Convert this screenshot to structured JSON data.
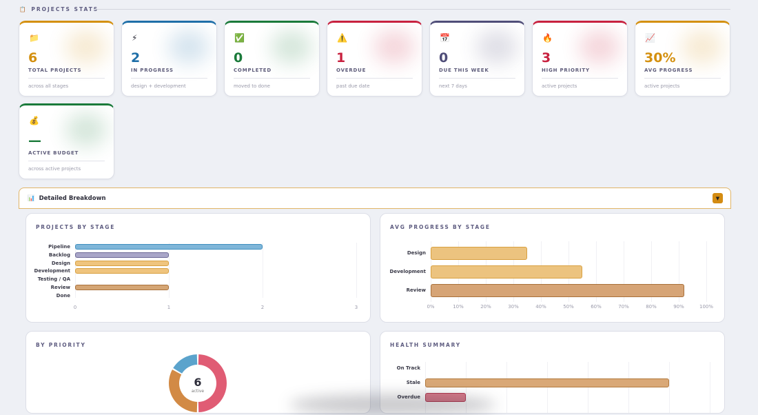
{
  "section": {
    "icon": "clipboard-icon",
    "title": "PROJECTS STATS"
  },
  "cards": [
    {
      "icon": "📁",
      "icon_name": "folder-icon",
      "value": "6",
      "label": "TOTAL PROJECTS",
      "sub": "across all stages",
      "color": "#d4900f"
    },
    {
      "icon": "⚡",
      "icon_name": "lightning-icon",
      "value": "2",
      "label": "IN PROGRESS",
      "sub": "design + development",
      "color": "#1f6fa8"
    },
    {
      "icon": "✅",
      "icon_name": "check-icon",
      "value": "0",
      "label": "COMPLETED",
      "sub": "moved to done",
      "color": "#1a7a3a"
    },
    {
      "icon": "⚠️",
      "icon_name": "warning-icon",
      "value": "1",
      "label": "OVERDUE",
      "sub": "past due date",
      "color": "#c8213f"
    },
    {
      "icon": "📅",
      "icon_name": "calendar-icon",
      "value": "0",
      "label": "DUE THIS WEEK",
      "sub": "next 7 days",
      "color": "#4f4d78"
    },
    {
      "icon": "🔥",
      "icon_name": "fire-icon",
      "value": "3",
      "label": "HIGH PRIORITY",
      "sub": "active projects",
      "color": "#c8213f"
    },
    {
      "icon": "📈",
      "icon_name": "chart-up-icon",
      "value": "30%",
      "label": "AVG PROGRESS",
      "sub": "active projects",
      "color": "#d4900f"
    },
    {
      "icon": "💰",
      "icon_name": "money-bag-icon",
      "value": "—",
      "label": "ACTIVE BUDGET",
      "sub": "across active projects",
      "color": "#1a7a3a"
    }
  ],
  "breakdown": {
    "icon": "bar-chart-icon",
    "title": "Detailed Breakdown",
    "toggle": "▼"
  },
  "chart_data": [
    {
      "type": "bar",
      "title": "PROJECTS BY STAGE",
      "orientation": "horizontal",
      "categories": [
        "Pipeline",
        "Backlog",
        "Design",
        "Development",
        "Testing / QA",
        "Review",
        "Done"
      ],
      "values": [
        2,
        1,
        1,
        1,
        0,
        1,
        0
      ],
      "colors": [
        "#7fb6d9",
        "#a9a6c8",
        "#efc47e",
        "#efc47e",
        "#efc47e",
        "#d4a574",
        "#7fc494"
      ],
      "borders": [
        "#3f8fbf",
        "#6b6896",
        "#d8a040",
        "#d8a040",
        "#d8a040",
        "#a8703a",
        "#2e8a4e"
      ],
      "xlim": [
        0,
        3
      ],
      "xticks": [
        "0",
        "1",
        "2",
        "3"
      ]
    },
    {
      "type": "bar",
      "title": "AVG PROGRESS BY STAGE",
      "orientation": "horizontal",
      "categories": [
        "Design",
        "Development",
        "Review"
      ],
      "values": [
        35,
        55,
        92
      ],
      "colors": [
        "#ecc37f",
        "#ecc37f",
        "#d6a476"
      ],
      "borders": [
        "#d8a040",
        "#d8a040",
        "#a8703a"
      ],
      "xlim": [
        0,
        100
      ],
      "xticks": [
        "0%",
        "10%",
        "20%",
        "30%",
        "40%",
        "50%",
        "60%",
        "70%",
        "80%",
        "90%",
        "100%"
      ]
    },
    {
      "type": "pie",
      "title": "BY PRIORITY",
      "center_value": "6",
      "center_label": "active",
      "values": [
        3,
        2,
        1
      ],
      "colors": [
        "#e05c74",
        "#d28a45",
        "#5ba3cc"
      ]
    },
    {
      "type": "bar",
      "title": "HEALTH SUMMARY",
      "orientation": "horizontal",
      "categories": [
        "On Track",
        "Stale",
        "Overdue"
      ],
      "values": [
        0,
        6,
        1
      ],
      "colors": [
        "#7fc494",
        "#d9a877",
        "#d97b8c"
      ],
      "borders": [
        "#2e8a4e",
        "#b37a3e",
        "#b23a52"
      ],
      "xlim": [
        0,
        7
      ]
    }
  ]
}
